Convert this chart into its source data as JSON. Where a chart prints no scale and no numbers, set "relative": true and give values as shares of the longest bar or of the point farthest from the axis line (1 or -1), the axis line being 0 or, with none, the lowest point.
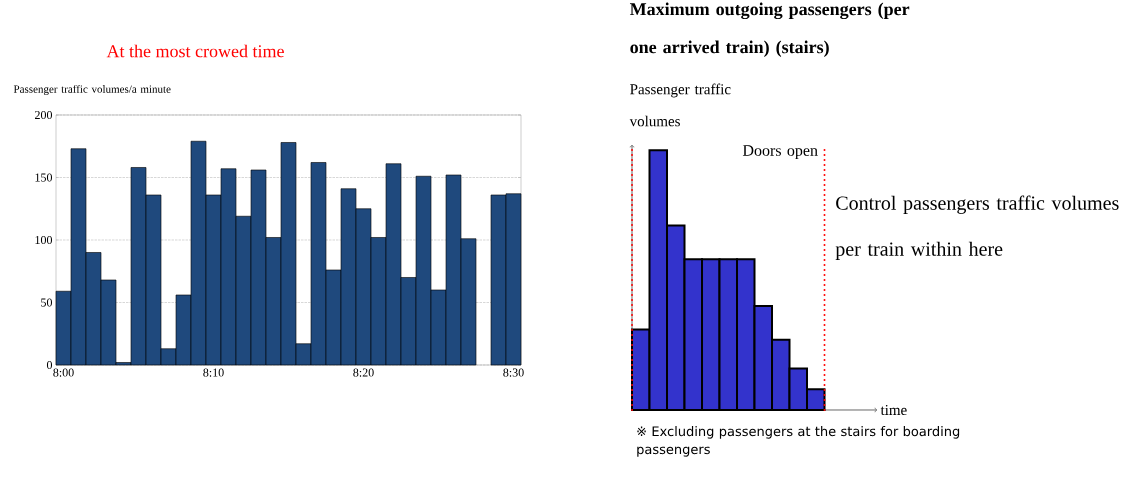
{
  "chart_data": [
    {
      "type": "bar",
      "title": "At the most crowed time",
      "ylabel": "Passenger traffic volumes/a minute",
      "categories": [
        "8:00",
        null,
        null,
        null,
        null,
        null,
        null,
        null,
        null,
        null,
        "8:10",
        null,
        null,
        null,
        null,
        null,
        null,
        null,
        null,
        null,
        "8:20",
        null,
        null,
        null,
        null,
        null,
        null,
        null,
        null,
        null,
        "8:30"
      ],
      "values": [
        59,
        173,
        90,
        68,
        2,
        158,
        136,
        13,
        56,
        179,
        136,
        157,
        119,
        156,
        102,
        178,
        17,
        162,
        76,
        141,
        125,
        102,
        161,
        70,
        151,
        60,
        152,
        101,
        null,
        136,
        137
      ],
      "color": "#1f497d",
      "ylim": [
        0,
        200
      ],
      "yticks": [
        0,
        50,
        100,
        150,
        200
      ],
      "grid": "y"
    },
    {
      "type": "bar",
      "relative": true,
      "title": "Maximum outgoing passengers (per one arrived train) (stairs)",
      "ylabel": "Passenger traffic volumes",
      "xlabel": "time",
      "categories": [
        null,
        null,
        null,
        null,
        null,
        null,
        null,
        null,
        null,
        null,
        null
      ],
      "values": [
        0.31,
        1,
        0.71,
        0.58,
        0.58,
        0.58,
        0.58,
        0.4,
        0.27,
        0.16,
        0.08
      ],
      "color": "#3333cc",
      "annotations": [
        "Doors open",
        "Control passengers traffic volumes per train within here",
        "※ Excluding passengers at the stairs for boarding passengers"
      ]
    }
  ]
}
